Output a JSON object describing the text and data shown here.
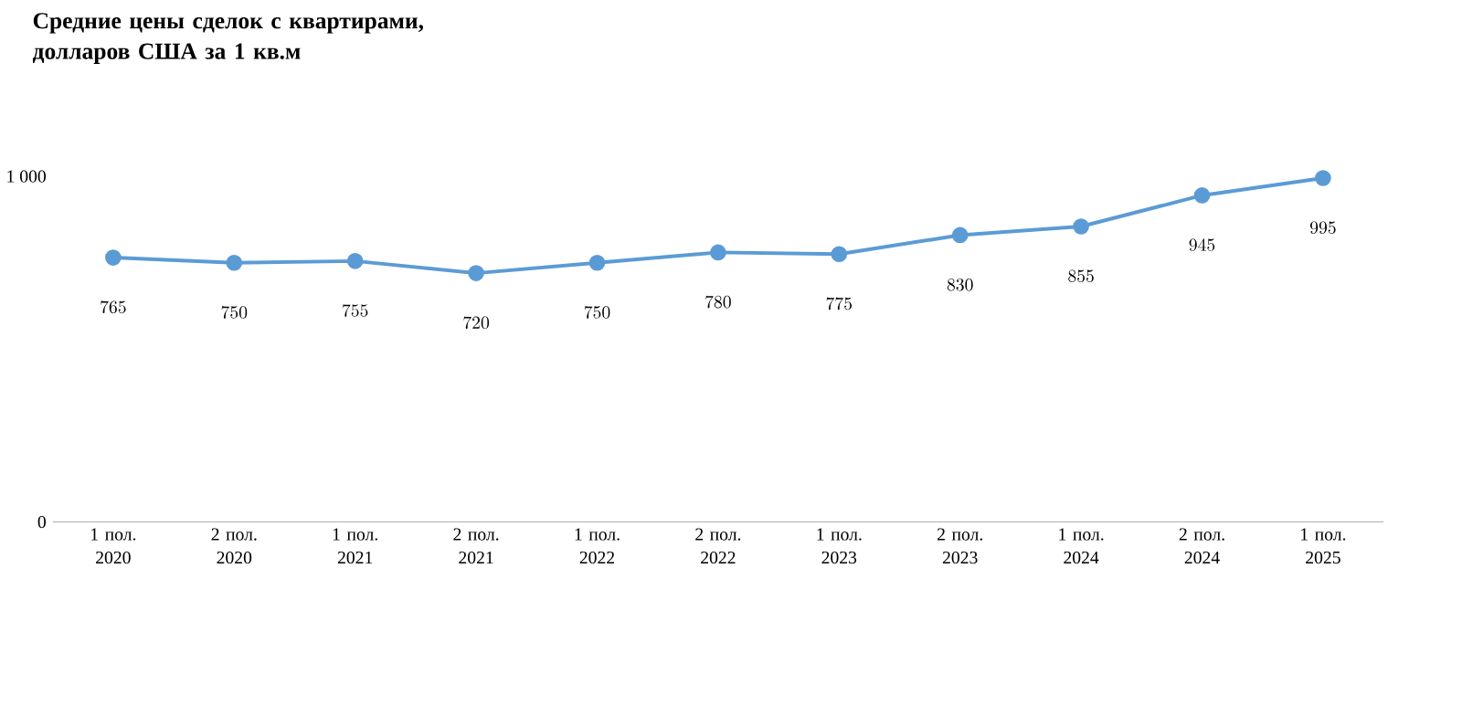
{
  "chart_data": {
    "type": "line",
    "title": "Средние цены сделок с квартирами, долларов США за 1 кв.м",
    "categories": [
      "1 пол. 2020",
      "2 пол. 2020",
      "1 пол. 2021",
      "2 пол. 2021",
      "1 пол. 2022",
      "2 пол. 2022",
      "1 пол. 2023",
      "2 пол. 2023",
      "1 пол. 2024",
      "2 пол. 2024",
      "1 пол. 2025"
    ],
    "values": [
      765,
      750,
      755,
      720,
      750,
      780,
      775,
      830,
      855,
      945,
      995
    ],
    "color": "#5b9bd5",
    "marker": "circle",
    "data_labels": true,
    "ylim": [
      0,
      1000
    ],
    "yticks": [
      0,
      {
        "value": 1000,
        "label": "1 000"
      }
    ]
  }
}
